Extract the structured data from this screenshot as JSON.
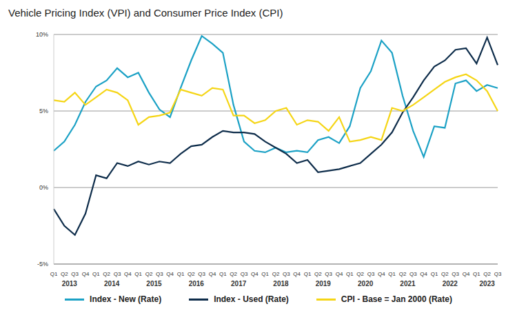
{
  "chart_data": {
    "type": "line",
    "title": "Vehicle Pricing Index (VPI) and Consumer Price Index (CPI)",
    "categories": [
      "Q1",
      "Q2",
      "Q3",
      "Q4",
      "Q1",
      "Q2",
      "Q3",
      "Q4",
      "Q1",
      "Q2",
      "Q3",
      "Q4",
      "Q1",
      "Q2",
      "Q3",
      "Q4",
      "Q1",
      "Q2",
      "Q3",
      "Q4",
      "Q1",
      "Q2",
      "Q3",
      "Q4",
      "Q1",
      "Q2",
      "Q3",
      "Q4",
      "Q1",
      "Q2",
      "Q3",
      "Q4",
      "Q1",
      "Q2",
      "Q3",
      "Q4",
      "Q1",
      "Q2",
      "Q3",
      "Q4",
      "Q1",
      "Q2",
      "Q3"
    ],
    "years": [
      "2013",
      "2013",
      "2013",
      "2013",
      "2014",
      "2014",
      "2014",
      "2014",
      "2015",
      "2015",
      "2015",
      "2015",
      "2016",
      "2016",
      "2016",
      "2016",
      "2017",
      "2017",
      "2017",
      "2017",
      "2018",
      "2018",
      "2018",
      "2018",
      "2019",
      "2019",
      "2019",
      "2019",
      "2020",
      "2020",
      "2020",
      "2020",
      "2021",
      "2021",
      "2021",
      "2021",
      "2022",
      "2022",
      "2022",
      "2022",
      "2023",
      "2023",
      "2023"
    ],
    "series": [
      {
        "name": "Index - New (Rate)",
        "color": "#1ba1c5",
        "values": [
          2.4,
          3.0,
          4.1,
          5.6,
          6.6,
          7.0,
          7.8,
          7.2,
          7.5,
          6.2,
          5.1,
          4.6,
          6.5,
          8.3,
          9.9,
          9.4,
          8.8,
          5.4,
          3.0,
          2.4,
          2.3,
          2.6,
          2.3,
          2.4,
          2.3,
          3.1,
          3.3,
          2.9,
          4.0,
          6.5,
          7.6,
          9.6,
          8.8,
          6.0,
          3.7,
          2.0,
          4.0,
          3.9,
          6.8,
          7.0,
          6.3,
          6.7,
          6.5
        ]
      },
      {
        "name": "Index - Used (Rate)",
        "color": "#0d2c4a",
        "values": [
          -1.4,
          -2.5,
          -3.1,
          -1.7,
          0.8,
          0.6,
          1.6,
          1.4,
          1.7,
          1.5,
          1.7,
          1.6,
          2.2,
          2.7,
          2.8,
          3.3,
          3.7,
          3.6,
          3.6,
          3.5,
          3.0,
          2.6,
          2.2,
          1.6,
          1.8,
          1.0,
          1.1,
          1.2,
          1.4,
          1.6,
          2.2,
          2.8,
          3.6,
          4.9,
          5.9,
          7.0,
          7.9,
          8.3,
          9.0,
          9.1,
          8.1,
          9.8,
          8.0
        ]
      },
      {
        "name": "CPI - Base = Jan 2000 (Rate)",
        "color": "#f5d515",
        "values": [
          5.7,
          5.6,
          6.2,
          5.4,
          5.9,
          6.4,
          6.2,
          5.7,
          4.1,
          4.6,
          4.7,
          4.9,
          6.4,
          6.2,
          6.0,
          6.5,
          6.4,
          4.7,
          4.7,
          4.2,
          4.4,
          5.0,
          5.2,
          4.1,
          4.4,
          4.3,
          3.7,
          4.6,
          3.0,
          3.1,
          3.3,
          3.1,
          5.2,
          5.0,
          5.4,
          5.9,
          6.4,
          6.9,
          7.2,
          7.4,
          7.0,
          6.3,
          5.0
        ]
      }
    ],
    "ylim": [
      -5,
      10
    ],
    "yticks": [
      {
        "value": -5,
        "label": "-5%"
      },
      {
        "value": 0,
        "label": "0%"
      },
      {
        "value": 5,
        "label": "5%"
      },
      {
        "value": 10,
        "label": "10%"
      }
    ],
    "grid": true,
    "legend": "bottom"
  }
}
